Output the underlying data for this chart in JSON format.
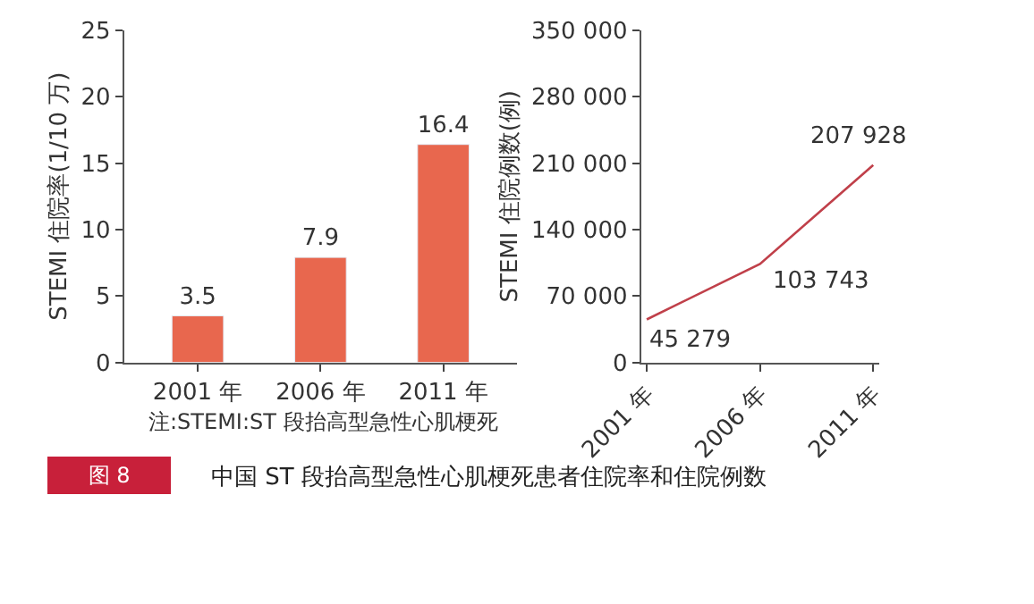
{
  "chart_data": [
    {
      "type": "bar",
      "categories": [
        "2001 年",
        "2006 年",
        "2011 年"
      ],
      "values": [
        3.5,
        7.9,
        16.4
      ],
      "color": "#e8674e",
      "ylabel": "STEMI 住院率(1/10 万)",
      "ylim": [
        0,
        25
      ],
      "yticks": [
        0,
        5,
        10,
        15,
        20,
        25
      ],
      "data_labels": true,
      "annotations": [
        "注:STEMI:ST 段抬高型急性心肌梗死",
        "图 8",
        "中国 ST 段抬高型急性心肌梗死患者住院率和住院例数"
      ]
    },
    {
      "type": "line",
      "categories": [
        "2001 年",
        "2006 年",
        "2011 年"
      ],
      "values": [
        45279,
        103743,
        207928
      ],
      "color": "#c0404a",
      "value_labels": [
        "45 279",
        "103 743",
        "207 928"
      ],
      "ylabel": "STEMI 住院例数(例)",
      "ylim": [
        0,
        350000
      ],
      "yticks": [
        0,
        {
          "value": 70000,
          "label": "70 000"
        },
        {
          "value": 140000,
          "label": "140 000"
        },
        {
          "value": 210000,
          "label": "210 000"
        },
        {
          "value": 280000,
          "label": "280 000"
        },
        {
          "value": 350000,
          "label": "350 000"
        }
      ],
      "marker": "none",
      "line_style": "solid"
    }
  ]
}
